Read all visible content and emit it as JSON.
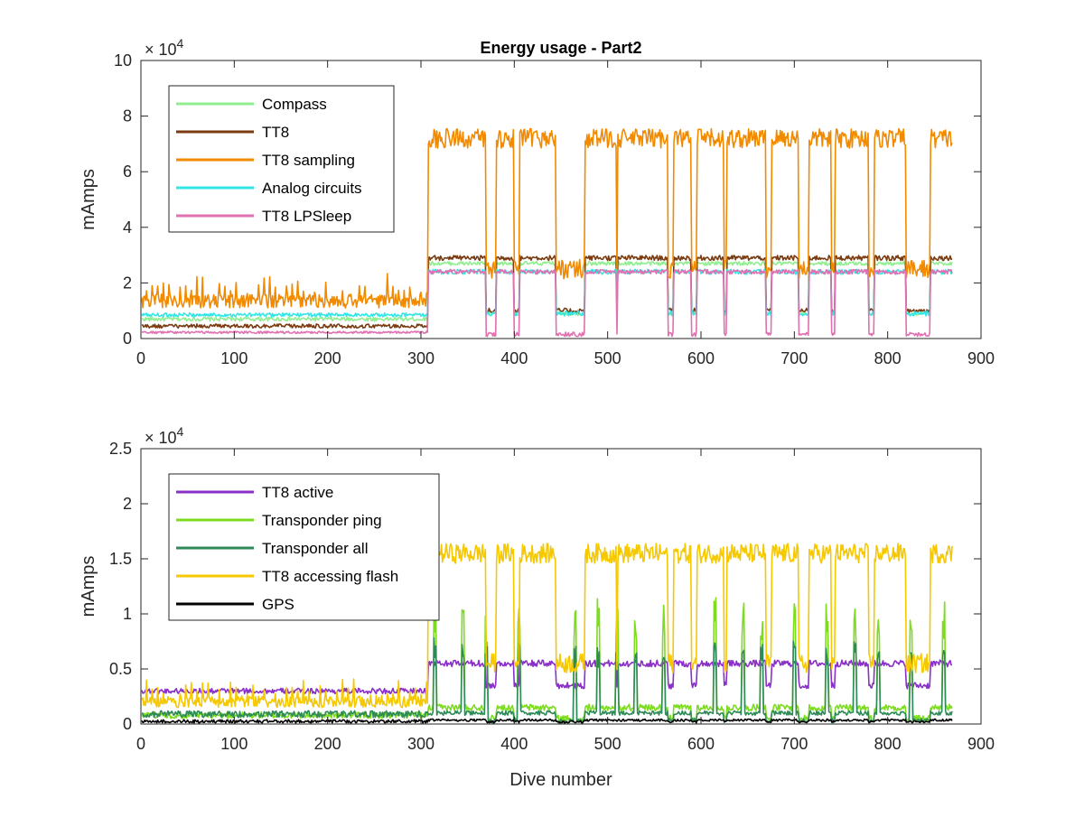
{
  "chart_data": [
    {
      "type": "line",
      "title": "Energy usage - Part2",
      "xlabel": "",
      "ylabel": "mAmps",
      "xlim": [
        0,
        900
      ],
      "ylim": [
        0,
        100000
      ],
      "xticks": [
        "0",
        "100",
        "200",
        "300",
        "400",
        "500",
        "600",
        "700",
        "800",
        "900"
      ],
      "yticks": [
        "0",
        "2",
        "4",
        "6",
        "8",
        "10"
      ],
      "y_multiplier": {
        "base": "× 10",
        "exp": "4"
      },
      "legend_position": "top-left",
      "series": [
        {
          "name": "Compass",
          "color": "#90ee90",
          "shape": {
            "pre": 7000,
            "pre_noise": 700,
            "post_low": 9000,
            "post_high": 27000,
            "noise": 700,
            "spike_every": 0,
            "spike": 0
          }
        },
        {
          "name": "TT8",
          "color": "#7a3b10",
          "shape": {
            "pre": 4500,
            "pre_noise": 700,
            "post_low": 10000,
            "post_high": 29000,
            "noise": 900,
            "spike_every": 0,
            "spike": 0
          }
        },
        {
          "name": "TT8 sampling",
          "color": "#f28a00",
          "shape": {
            "pre": 13500,
            "pre_noise": 2500,
            "post_low": 25000,
            "post_high": 72000,
            "noise": 3500,
            "spike_every": 6,
            "spike": 9000
          }
        },
        {
          "name": "Analog circuits",
          "color": "#33e6e6",
          "shape": {
            "pre": 8500,
            "pre_noise": 700,
            "post_low": 9000,
            "post_high": 24000,
            "noise": 900,
            "spike_every": 0,
            "spike": 0
          }
        },
        {
          "name": "TT8 LPSleep",
          "color": "#e070b0",
          "shape": {
            "pre": 2200,
            "pre_noise": 400,
            "post_low": 1500,
            "post_high": 24000,
            "noise": 800,
            "spike_every": 0,
            "spike": 0
          }
        }
      ]
    },
    {
      "type": "line",
      "title": "",
      "xlabel": "Dive number",
      "ylabel": "mAmps",
      "xlim": [
        0,
        900
      ],
      "ylim": [
        0,
        25000
      ],
      "xticks": [
        "0",
        "100",
        "200",
        "300",
        "400",
        "500",
        "600",
        "700",
        "800",
        "900"
      ],
      "yticks": [
        "0",
        "0.5",
        "1",
        "1.5",
        "2",
        "2.5"
      ],
      "y_multiplier": {
        "base": "× 10",
        "exp": "4"
      },
      "legend_position": "top-left",
      "series": [
        {
          "name": "TT8 active",
          "color": "#8b2fc9",
          "shape": {
            "pre": 3000,
            "pre_noise": 250,
            "post_low": 3500,
            "post_high": 5500,
            "noise": 300,
            "spike_every": 0,
            "spike": 0
          }
        },
        {
          "name": "Transponder ping",
          "color": "#7ddc1f",
          "shape": {
            "pre": 800,
            "pre_noise": 300,
            "post_low": 500,
            "post_high": 1500,
            "noise": 300,
            "spike_every": 0,
            "spike": 0,
            "peaks": 10000
          }
        },
        {
          "name": "Transponder all",
          "color": "#2e8b57",
          "shape": {
            "pre": 900,
            "pre_noise": 300,
            "post_low": 300,
            "post_high": 1000,
            "noise": 200,
            "spike_every": 0,
            "spike": 0,
            "peaks": 7000
          }
        },
        {
          "name": "TT8 accessing flash",
          "color": "#f5c800",
          "shape": {
            "pre": 2000,
            "pre_noise": 500,
            "post_low": 5500,
            "post_high": 15500,
            "noise": 900,
            "spike_every": 6,
            "spike": 2000
          }
        },
        {
          "name": "GPS",
          "color": "#000000",
          "shape": {
            "pre": 250,
            "pre_noise": 150,
            "post_low": 200,
            "post_high": 350,
            "noise": 100,
            "spike_every": 0,
            "spike": 0
          }
        }
      ]
    }
  ]
}
